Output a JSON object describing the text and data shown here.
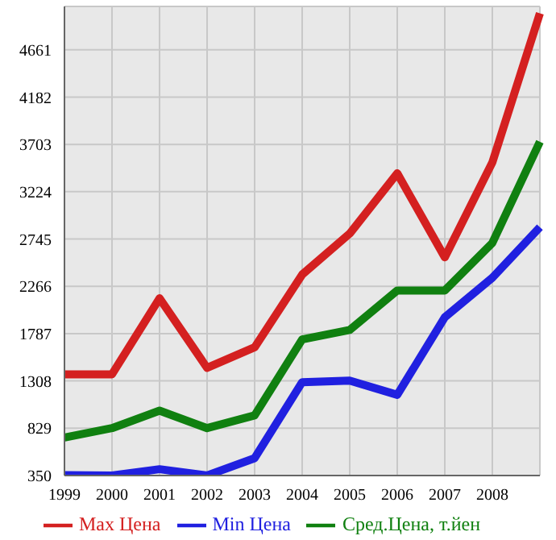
{
  "chart_data": {
    "type": "line",
    "categories": [
      "1999",
      "2000",
      "2001",
      "2002",
      "2003",
      "2004",
      "2005",
      "2006",
      "2007",
      "2008",
      null
    ],
    "series": [
      {
        "name": "Max Цена",
        "color": "#d42020",
        "values": [
          1375,
          1375,
          2145,
          1440,
          1648,
          2385,
          2800,
          3410,
          2560,
          3520,
          5030
        ]
      },
      {
        "name": "Min Цена",
        "color": "#2020e0",
        "values": [
          355,
          350,
          414,
          350,
          526,
          1295,
          1311,
          1167,
          1952,
          2353,
          2865
        ]
      },
      {
        "name": "Сред.Цена, т.йен",
        "color": "#108010",
        "values": [
          735,
          830,
          1007,
          830,
          959,
          1728,
          1824,
          2224,
          2224,
          2705,
          3730
        ]
      }
    ],
    "ylim": [
      350,
      5100
    ],
    "yticks": [
      350,
      829,
      1308,
      1787,
      2266,
      2745,
      3224,
      3703,
      4182,
      4661
    ],
    "grid": true,
    "legend": "bottom",
    "marker": "none",
    "line_style": "solid"
  }
}
